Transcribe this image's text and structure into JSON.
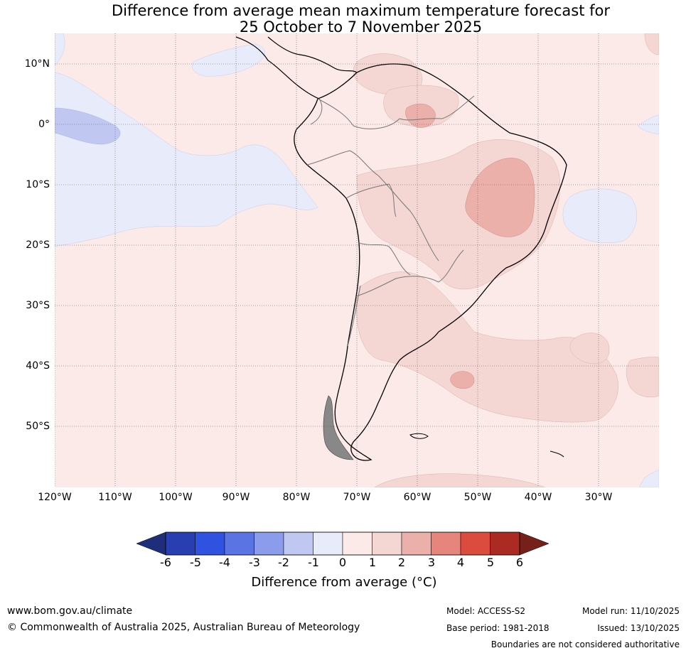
{
  "title": {
    "line1": "Difference from average mean maximum temperature forecast for",
    "line2": "25 October to 7 November 2025"
  },
  "map": {
    "lat_labels": [
      "10°N",
      "0°",
      "10°S",
      "20°S",
      "30°S",
      "40°S",
      "50°S"
    ],
    "lon_labels": [
      "120°W",
      "110°W",
      "100°W",
      "90°W",
      "80°W",
      "70°W",
      "60°W",
      "50°W",
      "40°W",
      "30°W"
    ],
    "colors": {
      "bg_anomaly_0_1": "#fbeae8",
      "anomaly_1_2": "#f4d6d3",
      "anomaly_2_3": "#ecb0ab",
      "anomaly_neg1_0": "#e8ebfa",
      "anomaly_neg2_neg1": "#c0c8f2"
    }
  },
  "colorbar": {
    "tick_labels": [
      "-6",
      "-5",
      "-4",
      "-3",
      "-2",
      "-1",
      "0",
      "1",
      "2",
      "3",
      "4",
      "5",
      "6"
    ],
    "colors": [
      "#1f2e7a",
      "#283fb2",
      "#2f52e0",
      "#5a74e4",
      "#8a9ceb",
      "#c0c8f2",
      "#e8ebfa",
      "#fbeae8",
      "#f4d6d3",
      "#ecb0ab",
      "#e6857b",
      "#db4b3e",
      "#ab2b22",
      "#76201a"
    ],
    "label": "Difference from average (°C)"
  },
  "footer": {
    "website": "www.bom.gov.au/climate",
    "copyright": "© Commonwealth of Australia 2025, Australian Bureau of Meteorology",
    "model": "Model: ACCESS-S2",
    "base_period": "Base period: 1981-2018",
    "model_run": "Model run: 11/10/2025",
    "issued": "Issued: 13/10/2025",
    "disclaimer": "Boundaries are not considered authoritative"
  }
}
